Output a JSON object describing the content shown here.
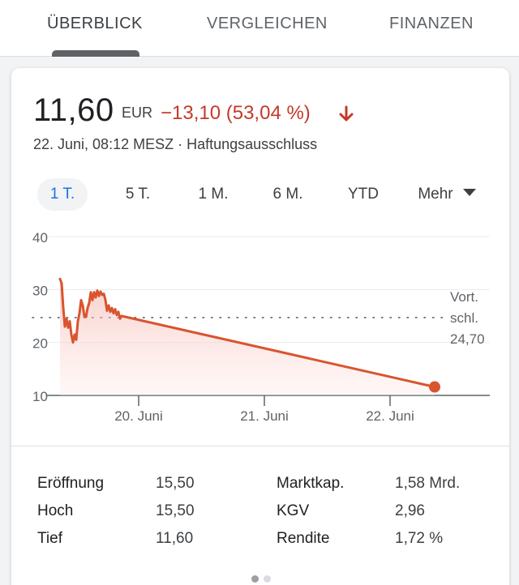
{
  "tabs": [
    {
      "label": "ÜBERBLICK",
      "active": true
    },
    {
      "label": "VERGLEICHEN",
      "active": false
    },
    {
      "label": "FINANZEN",
      "active": false
    }
  ],
  "quote": {
    "price": "11,60",
    "currency": "EUR",
    "change": "−13,10 (53,04 %)",
    "direction_icon": "arrow-down-icon",
    "timestamp": "22. Juni, 08:12 MESZ · Haftungsausschluss"
  },
  "ranges": [
    {
      "label": "1 T.",
      "active": true
    },
    {
      "label": "5 T.",
      "active": false
    },
    {
      "label": "1 M.",
      "active": false
    },
    {
      "label": "6 M.",
      "active": false
    },
    {
      "label": "YTD",
      "active": false
    },
    {
      "label": "Mehr",
      "active": false
    }
  ],
  "colors": {
    "accent_negative": "#c5392a",
    "line": "#d9542f",
    "active_range": "#1a73e8"
  },
  "chart_data": {
    "type": "line",
    "ylim": [
      10,
      40
    ],
    "y_ticks": [
      "40",
      "30",
      "20",
      "10"
    ],
    "x_ticks": [
      "20. Juni",
      "21. Juni",
      "22. Juni"
    ],
    "previous_close": {
      "label_lines": [
        "Vort.",
        "schl.",
        "24,70"
      ],
      "value": 24.7
    },
    "series": [
      {
        "values": [
          [
            0.0,
            32.0
          ],
          [
            0.01,
            31.2
          ],
          [
            0.02,
            26.5
          ],
          [
            0.03,
            23.0
          ],
          [
            0.04,
            24.5
          ],
          [
            0.05,
            22.8
          ],
          [
            0.06,
            24.0
          ],
          [
            0.07,
            21.5
          ],
          [
            0.08,
            20.0
          ],
          [
            0.09,
            21.5
          ],
          [
            0.1,
            20.5
          ],
          [
            0.11,
            24.0
          ],
          [
            0.12,
            25.5
          ],
          [
            0.13,
            28.0
          ],
          [
            0.14,
            27.0
          ],
          [
            0.15,
            25.0
          ],
          [
            0.16,
            24.8
          ],
          [
            0.17,
            26.5
          ],
          [
            0.18,
            27.5
          ],
          [
            0.19,
            29.5
          ],
          [
            0.2,
            28.0
          ],
          [
            0.21,
            29.5
          ],
          [
            0.22,
            28.5
          ],
          [
            0.23,
            29.8
          ],
          [
            0.24,
            28.8
          ],
          [
            0.25,
            29.6
          ],
          [
            0.26,
            29.0
          ],
          [
            0.27,
            29.2
          ],
          [
            0.28,
            28.0
          ],
          [
            0.29,
            26.0
          ],
          [
            0.3,
            27.0
          ],
          [
            0.31,
            25.8
          ],
          [
            0.32,
            26.5
          ],
          [
            0.33,
            25.5
          ],
          [
            0.34,
            26.3
          ],
          [
            0.35,
            25.2
          ],
          [
            0.36,
            25.8
          ],
          [
            0.37,
            24.5
          ],
          [
            0.38,
            25.0
          ],
          [
            3.4,
            11.6
          ]
        ]
      }
    ],
    "grid": true
  },
  "stats": [
    {
      "label": "Eröffnung",
      "value": "15,50"
    },
    {
      "label": "Hoch",
      "value": "15,50"
    },
    {
      "label": "Tief",
      "value": "11,60"
    },
    {
      "label": "Marktkap.",
      "value": "1,58 Mrd."
    },
    {
      "label": "KGV",
      "value": "2,96"
    },
    {
      "label": "Rendite",
      "value": "1,72 %"
    }
  ],
  "pager": {
    "pages": 2,
    "current": 1
  }
}
